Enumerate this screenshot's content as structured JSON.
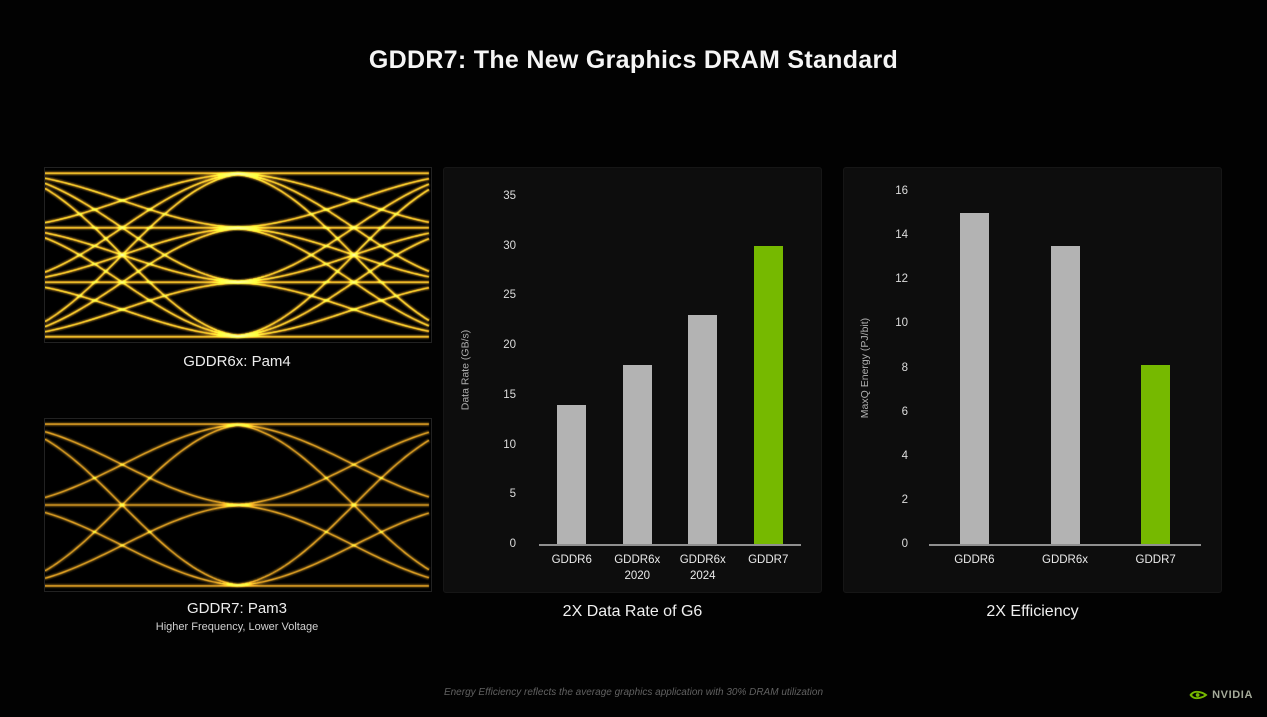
{
  "title": "GDDR7: The New Graphics DRAM Standard",
  "eye_diagrams": [
    {
      "label": "GDDR6x: Pam4",
      "sublabel": "",
      "levels": 4,
      "modulation": "PAM4"
    },
    {
      "label": "GDDR7: Pam3",
      "sublabel": "Higher Frequency, Lower Voltage",
      "levels": 3,
      "modulation": "PAM3"
    }
  ],
  "chart_data": [
    {
      "type": "bar",
      "title": "2X Data Rate of G6",
      "ylabel": "Data Rate (GB/s)",
      "categories": [
        "GDDR6",
        "GDDR6x\n2020",
        "GDDR6x\n2024",
        "GDDR7"
      ],
      "values": [
        14,
        18,
        23,
        30
      ],
      "ylim": [
        0,
        35
      ],
      "ytick_step": 5,
      "grid": false,
      "legend": "none",
      "bar_colors": [
        "#b3b3b3",
        "#b3b3b3",
        "#b3b3b3",
        "#76b900"
      ]
    },
    {
      "type": "bar",
      "title": "2X Efficiency",
      "ylabel": "MaxQ Energy (PJ/bit)",
      "categories": [
        "GDDR6",
        "GDDR6x",
        "GDDR7"
      ],
      "values": [
        15,
        13.5,
        8.1
      ],
      "ylim": [
        0,
        16
      ],
      "ytick_step": 2,
      "grid": false,
      "legend": "none",
      "bar_colors": [
        "#b3b3b3",
        "#b3b3b3",
        "#76b900"
      ]
    }
  ],
  "footnote": "Energy Efficiency reflects the average graphics application with 30% DRAM utilization",
  "logo": {
    "text": "NVIDIA"
  },
  "colors": {
    "nvidia_green": "#76b900",
    "bar_gray": "#b3b3b3",
    "trace_orange": "rgba(222,158,34,",
    "background": "#020202",
    "panel": "#0d0d0d"
  }
}
